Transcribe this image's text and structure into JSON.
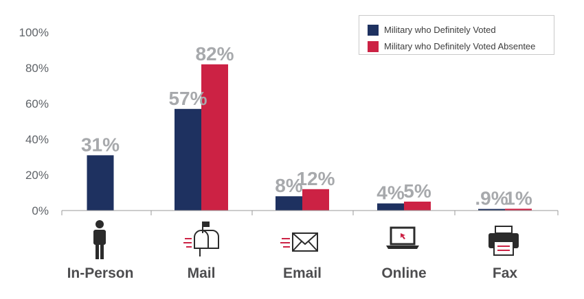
{
  "chart_data": {
    "type": "bar",
    "title": "",
    "xlabel": "",
    "ylabel": "",
    "categories": [
      "In-Person",
      "Mail",
      "Email",
      "Online",
      "Fax"
    ],
    "icons": [
      "person-icon",
      "mailbox-icon",
      "envelope-icon",
      "laptop-icon",
      "fax-icon"
    ],
    "series": [
      {
        "name": "Military who Definitely Voted",
        "color": "#1e3160",
        "values": [
          31,
          57,
          8,
          4,
          0.9
        ],
        "labels": [
          "31%",
          "57%",
          "8%",
          "4%",
          ".9%"
        ]
      },
      {
        "name": "Military who Definitely Voted Absentee",
        "color": "#cc2244",
        "values": [
          null,
          82,
          12,
          5,
          1
        ],
        "labels": [
          "",
          "82%",
          "12%",
          "5%",
          "1%"
        ]
      }
    ],
    "yticks": [
      "0%",
      "20%",
      "40%",
      "60%",
      "80%",
      "100%"
    ],
    "ylim": [
      0,
      100
    ],
    "grid": false,
    "legend_position": "top-right"
  }
}
